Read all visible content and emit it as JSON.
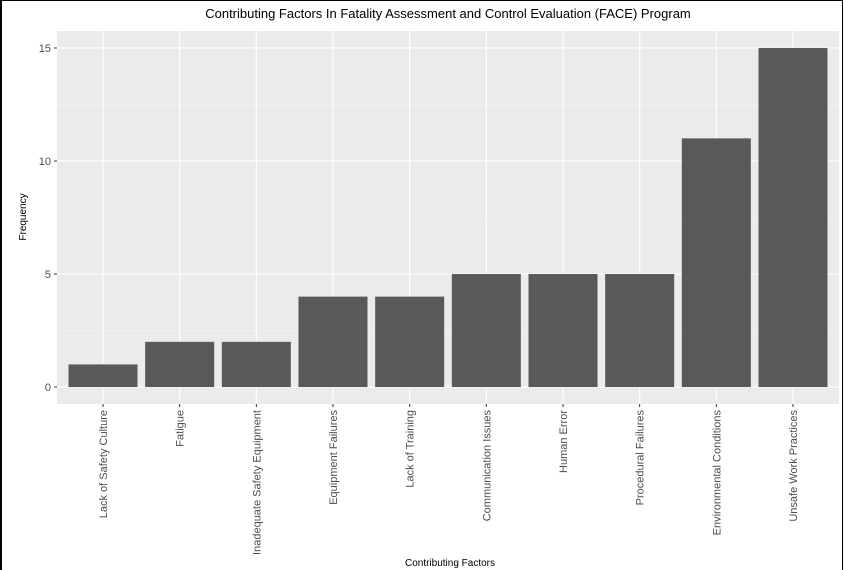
{
  "chart_data": {
    "type": "bar",
    "title": "Contributing Factors In Fatality Assessment and Control Evaluation (FACE) Program",
    "xlabel": "Contributing Factors",
    "ylabel": "Frequency",
    "categories": [
      "Lack of Safety Culture",
      "Fatigue",
      "Inadequate Safety Equipment",
      "Equipment Failures",
      "Lack of Training",
      "Communication Issues",
      "Human Error",
      "Procedural Failures",
      "Environmental Conditions",
      "Unsafe Work Practices"
    ],
    "values": [
      1,
      2,
      2,
      4,
      4,
      5,
      5,
      5,
      11,
      15
    ],
    "ylim": [
      -0.75,
      15.75
    ],
    "yticks": [
      0,
      5,
      10,
      15
    ],
    "grid": true,
    "legend": "none",
    "colors": {
      "bar": "#595959",
      "panel": "#ebebeb",
      "grid_major": "#ffffff",
      "grid_minor": "#f5f5f5"
    }
  }
}
